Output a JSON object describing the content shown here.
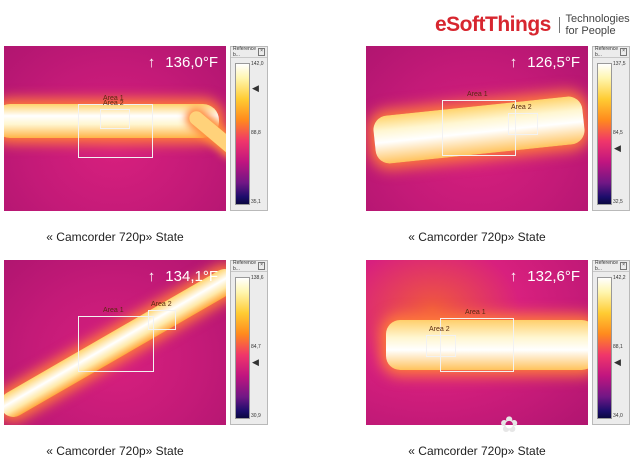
{
  "brand": {
    "name": "eSoftThings",
    "tagline": "Technologies for People",
    "color": "#d7262f"
  },
  "reference_bar": {
    "title": "Reference b..."
  },
  "panels": [
    {
      "temperature": "136,0°F",
      "areas": [
        "Area 1",
        "Area 2"
      ],
      "scale": [
        "142,0",
        "88,8",
        "35,1"
      ],
      "caption": "« Camcorder 720p» State"
    },
    {
      "temperature": "126,5°F",
      "areas": [
        "Area 1",
        "Area 2"
      ],
      "scale": [
        "137,5",
        "84,5",
        "32,5"
      ],
      "caption": "« Camcorder 720p» State"
    },
    {
      "temperature": "134,1°F",
      "areas": [
        "Area 1",
        "Area 2"
      ],
      "scale": [
        "138,6",
        "84,7",
        "30,9"
      ],
      "caption": "« Camcorder 720p» State"
    },
    {
      "temperature": "132,6°F",
      "areas": [
        "Area 1",
        "Area 2"
      ],
      "scale": [
        "142,2",
        "88,1",
        "34,0"
      ],
      "caption": "« Camcorder 720p» State"
    }
  ]
}
